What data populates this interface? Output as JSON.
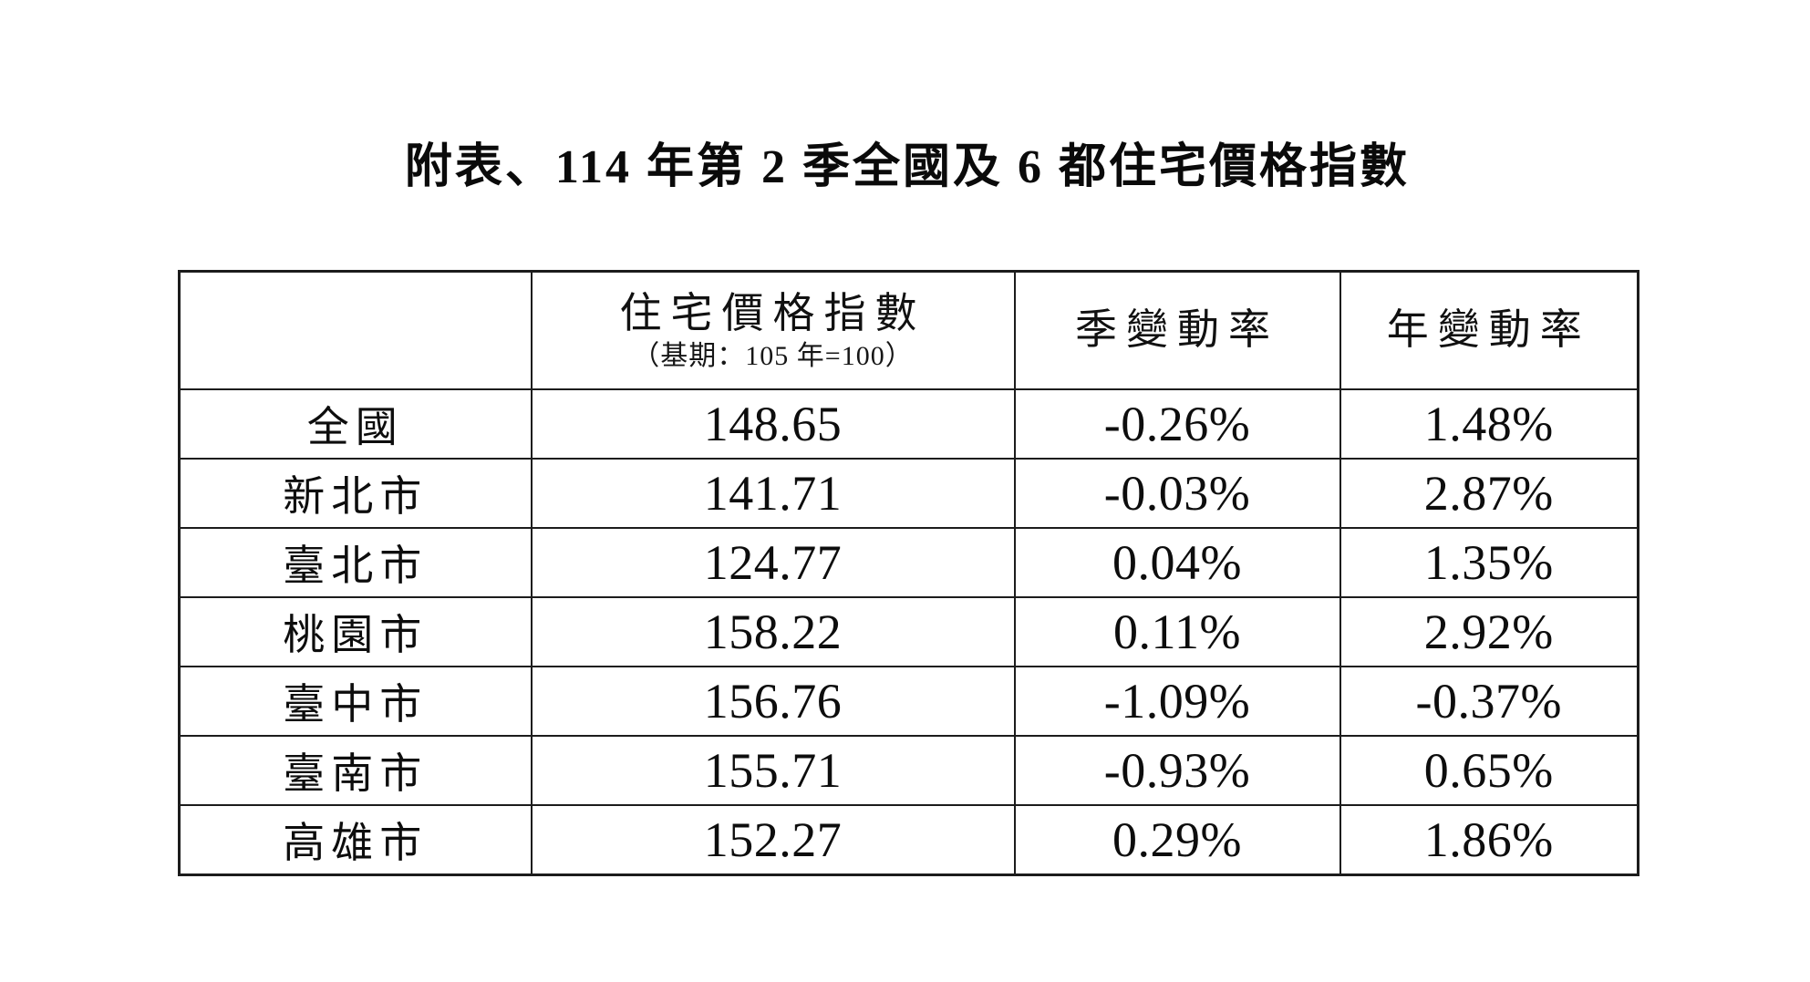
{
  "page": {
    "title": "附表、114 年第 2 季全國及 6 都住宅價格指數"
  },
  "table": {
    "header": {
      "region_label": "",
      "index_label": "住宅價格指數",
      "index_sublabel": "（基期：105 年=100）",
      "qoq_label": "季變動率",
      "yoy_label": "年變動率"
    },
    "rows": [
      {
        "region": "全國",
        "index": "148.65",
        "qoq": "-0.26%",
        "yoy": "1.48%"
      },
      {
        "region": "新北市",
        "index": "141.71",
        "qoq": "-0.03%",
        "yoy": "2.87%"
      },
      {
        "region": "臺北市",
        "index": "124.77",
        "qoq": "0.04%",
        "yoy": "1.35%"
      },
      {
        "region": "桃園市",
        "index": "158.22",
        "qoq": "0.11%",
        "yoy": "2.92%"
      },
      {
        "region": "臺中市",
        "index": "156.76",
        "qoq": "-1.09%",
        "yoy": "-0.37%"
      },
      {
        "region": "臺南市",
        "index": "155.71",
        "qoq": "-0.93%",
        "yoy": "0.65%"
      },
      {
        "region": "高雄市",
        "index": "152.27",
        "qoq": "0.29%",
        "yoy": "1.86%"
      }
    ]
  },
  "colors": {
    "text": "#0d0d0d",
    "border": "#1c1c1c",
    "background": "#ffffff"
  }
}
